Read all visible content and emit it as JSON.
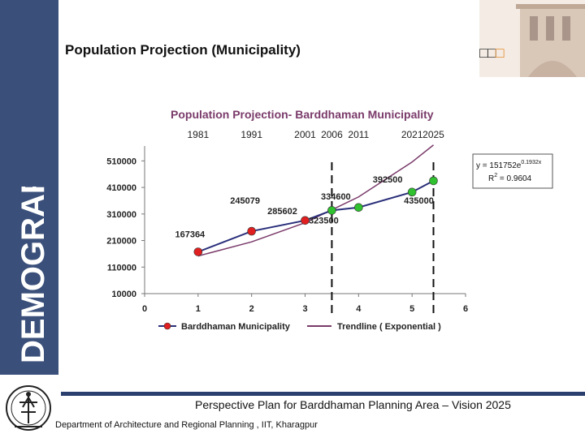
{
  "slide": {
    "title": "Population Projection (Municipality)",
    "side_label": "DEMOGRAPHY",
    "corner_squares": "□□",
    "corner_square_highlight": "□",
    "footer_title": "Perspective Plan for Barddhaman Planning Area – Vision 2025",
    "footer_subtitle": "Department of Architecture and Regional Planning , IIT, Kharagpur"
  },
  "colors": {
    "sidebar": "#3a4f7a",
    "footer_rule": "#2a3f6e",
    "chart_title": "#7a3a6a",
    "series_line": "#2a2f7a",
    "trendline": "#7a3a6a",
    "point_past": "#e02020",
    "point_projected": "#30c030"
  },
  "chart_data": {
    "type": "line",
    "title": "Population Projection- Barddhaman Municipality",
    "top_labels": [
      "1981",
      "1991",
      "2001",
      "2006",
      "2011",
      "2021",
      "2025"
    ],
    "x_ticks": [
      "0",
      "1",
      "2",
      "3",
      "4",
      "5",
      "6"
    ],
    "xlim": [
      0,
      6
    ],
    "ylim": [
      10000,
      560000
    ],
    "y_ticks": [
      "510000",
      "410000",
      "310000",
      "210000",
      "110000",
      "10000"
    ],
    "series": [
      {
        "name": "Barddhaman Municipality",
        "x": [
          1,
          2,
          3,
          3.5,
          4,
          5,
          5.4
        ],
        "y": [
          167364,
          245079,
          285602,
          323500,
          334600,
          392500,
          435000
        ],
        "labels": [
          "167364",
          "245079",
          "285602",
          "323500",
          "334600",
          "392500",
          "435000"
        ],
        "marker_types": [
          "past",
          "past",
          "past",
          "projected",
          "projected",
          "projected",
          "projected"
        ]
      },
      {
        "name": "Trendline ( Exponential )",
        "x": [
          1,
          2,
          3,
          4,
          5,
          5.4
        ],
        "y": [
          151752,
          205040,
          277044,
          374334,
          505789,
          570000
        ]
      }
    ],
    "equation": "y = 151752e",
    "equation_exp": "0.1932x",
    "r2_label": "R",
    "r2_sup": "2",
    "r2_value": " = 0.9604",
    "dashed_x": [
      3.5,
      5.4
    ],
    "grid": false,
    "legend_position": "bottom"
  }
}
